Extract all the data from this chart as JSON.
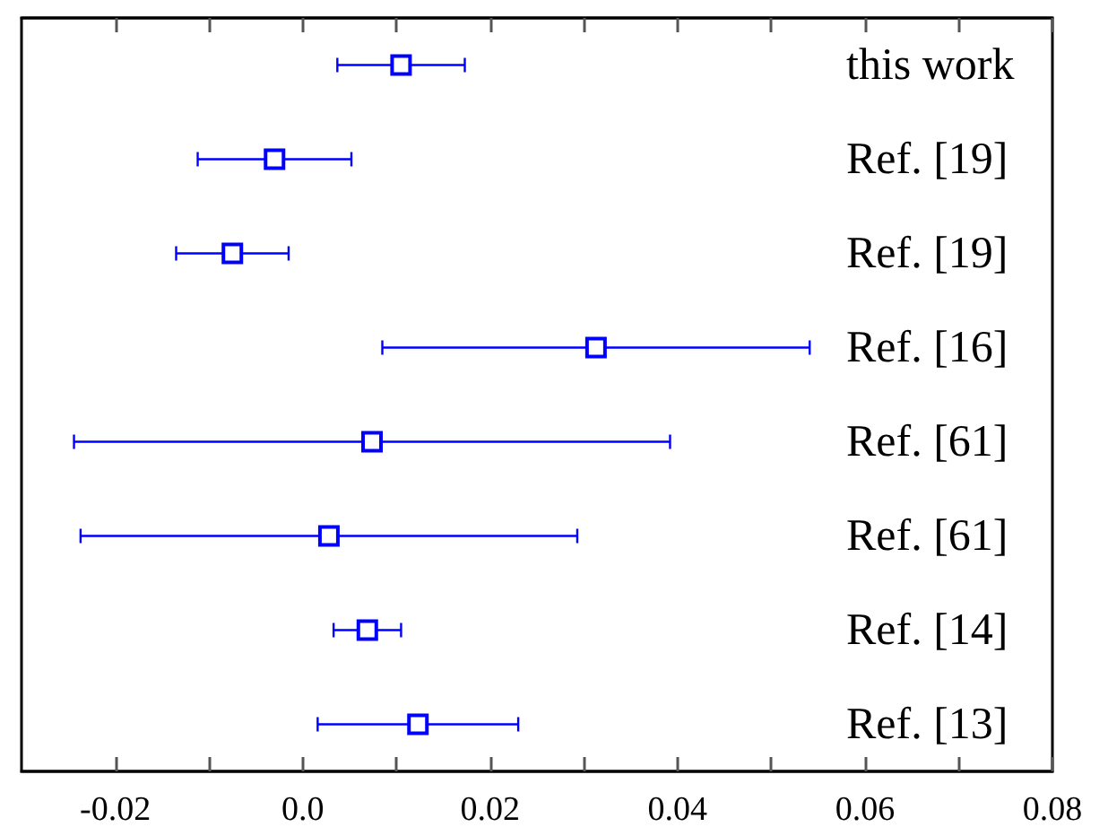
{
  "chart_data": {
    "type": "scatter",
    "orientation": "horizontal",
    "marker": "square",
    "color": "#0000ff",
    "categories": [
      "this work",
      "Ref. [19]",
      "Ref. [19]",
      "Ref. [16]",
      "Ref. [61]",
      "Ref. [61]",
      "Ref. [14]",
      "Ref. [13]"
    ],
    "values": [
      0.0105,
      -0.003,
      -0.0075,
      0.0313,
      0.0074,
      0.0028,
      0.0069,
      0.0123
    ],
    "errors": [
      0.0068,
      0.0082,
      0.006,
      0.0228,
      0.0318,
      0.0265,
      0.0036,
      0.0107
    ],
    "xlim": [
      -0.03,
      0.08
    ],
    "xticks": [
      -0.02,
      {
        "value": -0.01,
        "label": null
      },
      {
        "value": 0,
        "label": "0.0"
      },
      {
        "value": 0.01,
        "label": null
      },
      0.02,
      {
        "value": 0.03,
        "label": null
      },
      0.04,
      {
        "value": 0.05,
        "label": null
      },
      0.06,
      {
        "value": 0.07,
        "label": null
      },
      0.08
    ]
  }
}
